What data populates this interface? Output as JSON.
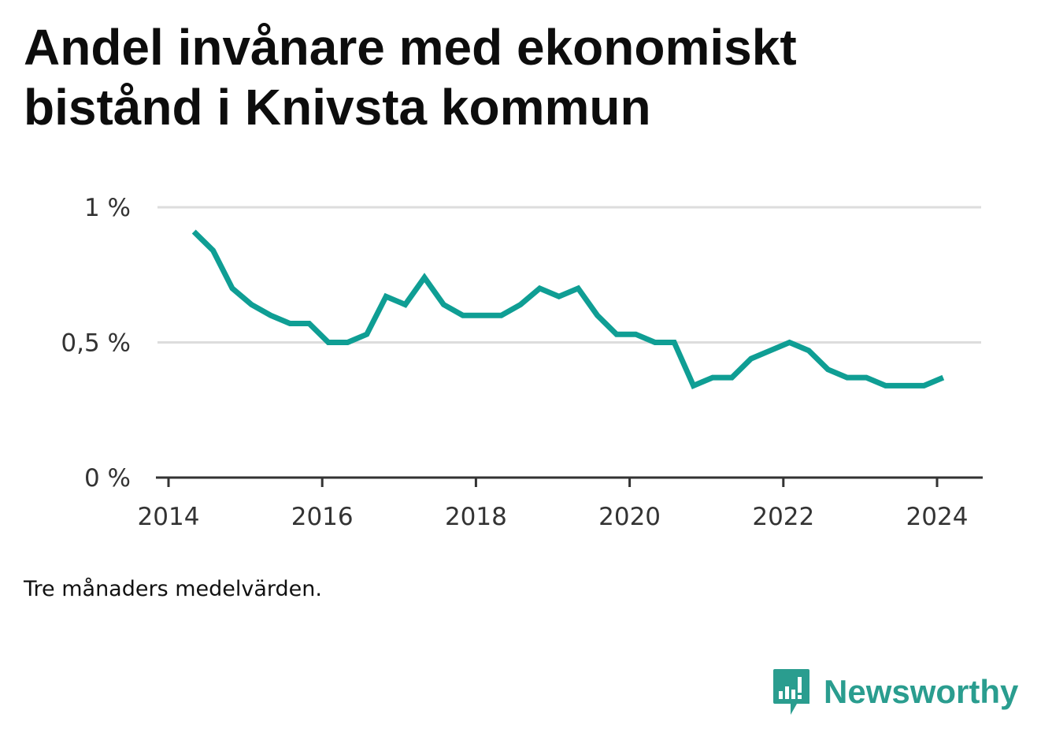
{
  "title": "Andel invånare med ekonomiskt bistånd i Knivsta kommun",
  "footnote": "Tre månaders medelvärden.",
  "brand": {
    "name": "Newsworthy",
    "icon": "newsworthy-logo-icon",
    "color": "#2a9d8f"
  },
  "colors": {
    "line": "#0f9e94",
    "grid": "#dddddd",
    "axis": "#333333"
  },
  "chart_data": {
    "type": "line",
    "title": "Andel invånare med ekonomiskt bistånd i Knivsta kommun",
    "xlabel": "",
    "ylabel": "",
    "xlim": [
      2014,
      2024.6
    ],
    "ylim": [
      0,
      1
    ],
    "grid": true,
    "x_ticks": [
      {
        "value": 2014,
        "label": "2014"
      },
      {
        "value": 2016,
        "label": "2016"
      },
      {
        "value": 2018,
        "label": "2018"
      },
      {
        "value": 2020,
        "label": "2020"
      },
      {
        "value": 2022,
        "label": "2022"
      },
      {
        "value": 2024,
        "label": "2024"
      }
    ],
    "y_ticks": [
      {
        "value": 0,
        "label": "0 %"
      },
      {
        "value": 0.5,
        "label": "0,5 %"
      },
      {
        "value": 1,
        "label": "1 %"
      }
    ],
    "series": [
      {
        "x": [
          2014.33,
          2014.58,
          2014.83,
          2015.08,
          2015.33,
          2015.58,
          2015.83,
          2016.08,
          2016.33,
          2016.58,
          2016.83,
          2017.08,
          2017.33,
          2017.58,
          2017.83,
          2018.08,
          2018.33,
          2018.58,
          2018.83,
          2019.08,
          2019.33,
          2019.58,
          2019.83,
          2020.08,
          2020.33,
          2020.58,
          2020.83,
          2021.08,
          2021.33,
          2021.58,
          2021.83,
          2022.08,
          2022.33,
          2022.58,
          2022.83,
          2023.08,
          2023.33,
          2023.58,
          2023.83,
          2024.08
        ],
        "values": [
          0.91,
          0.84,
          0.7,
          0.64,
          0.6,
          0.57,
          0.57,
          0.5,
          0.5,
          0.53,
          0.67,
          0.64,
          0.74,
          0.64,
          0.6,
          0.6,
          0.6,
          0.64,
          0.7,
          0.67,
          0.7,
          0.6,
          0.53,
          0.53,
          0.5,
          0.5,
          0.34,
          0.37,
          0.37,
          0.44,
          0.47,
          0.5,
          0.47,
          0.4,
          0.37,
          0.37,
          0.34,
          0.34,
          0.34,
          0.37
        ]
      }
    ]
  }
}
